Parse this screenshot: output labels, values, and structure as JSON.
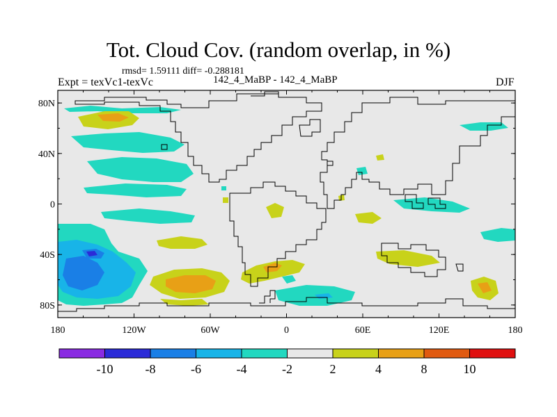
{
  "title": "Tot. Cloud Cov. (random overlap, in %)",
  "stats": "rmsd= 1.59111 diff= -0.288181",
  "experiment": "Expt = texVc1-texVc",
  "case": "142_4_MaBP - 142_4_MaBP",
  "season": "DJF",
  "axes": {
    "x_ticks": [
      "180",
      "120W",
      "60W",
      "0",
      "60E",
      "120E",
      "180"
    ],
    "y_ticks": [
      "80N",
      "40N",
      "0",
      "40S",
      "80S"
    ]
  },
  "colorbar": {
    "labels": [
      "-10",
      "-8",
      "-6",
      "-4",
      "-2",
      "2",
      "4",
      "8",
      "10"
    ],
    "colors": [
      "#8a2be2",
      "#2b2bd8",
      "#1a7fe6",
      "#18b4e8",
      "#22d8c0",
      "#e8e8e8",
      "#c8d21a",
      "#e8a016",
      "#e05a10",
      "#e01010"
    ]
  }
}
